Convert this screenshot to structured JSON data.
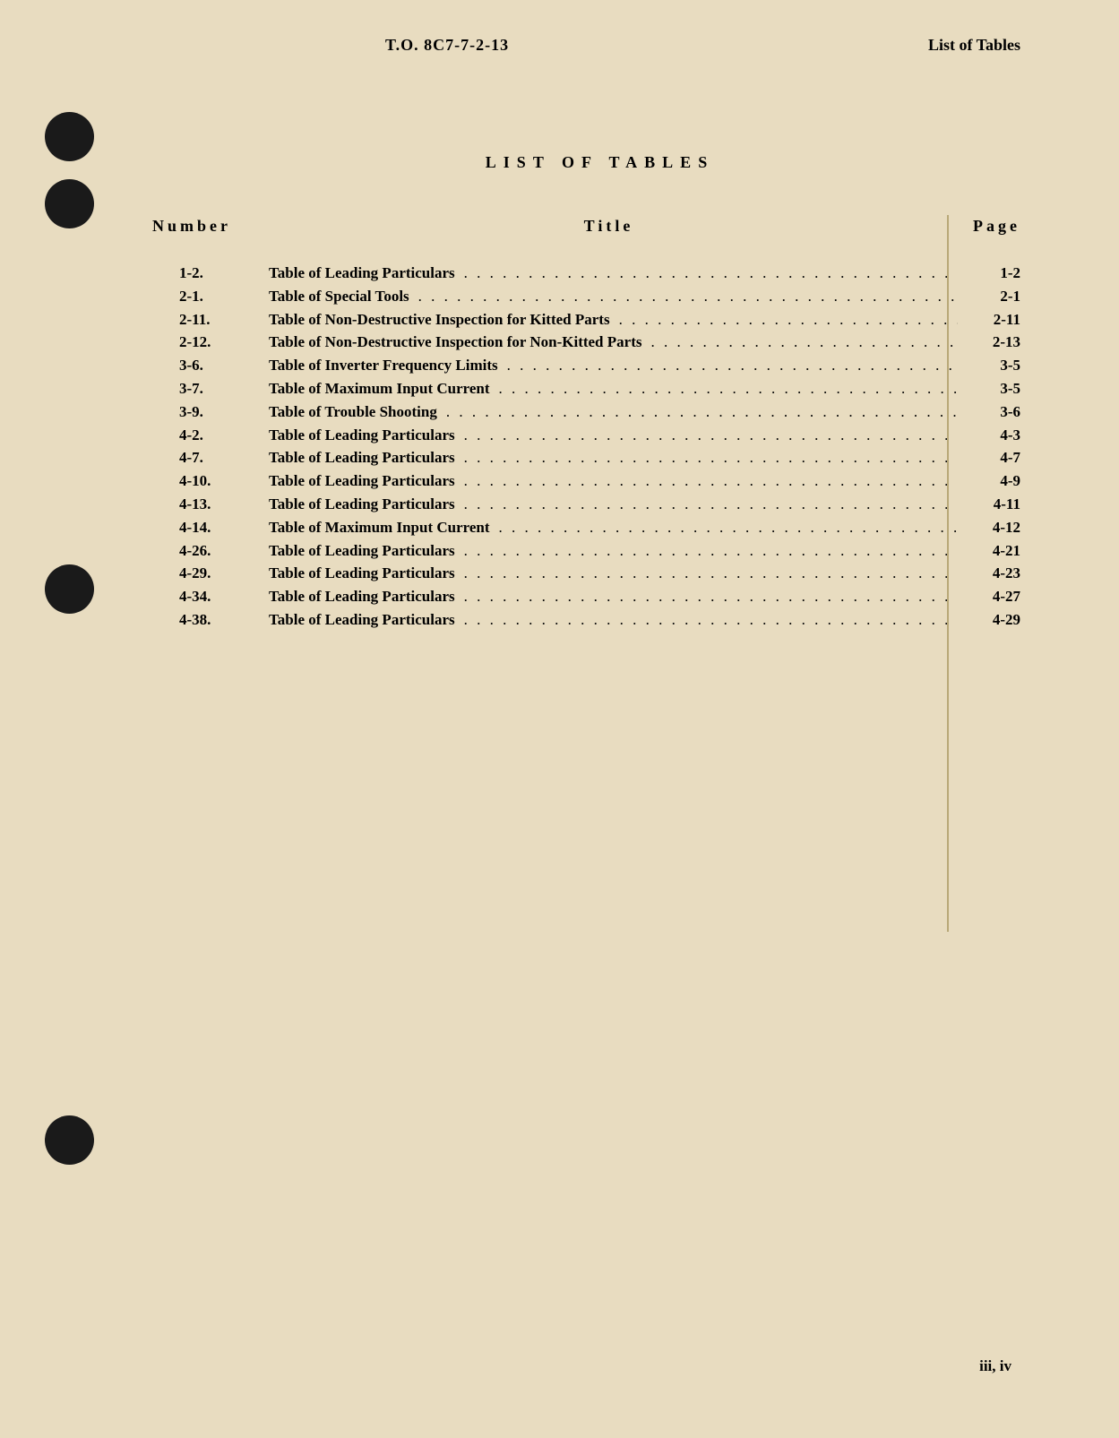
{
  "header": {
    "docNumber": "T.O. 8C7-7-2-13",
    "label": "List of Tables"
  },
  "title": "LIST OF TABLES",
  "columnHeaders": {
    "number": "Number",
    "title": "Title",
    "page": "Page"
  },
  "entries": [
    {
      "number": "1-2.",
      "title": "Table of Leading Particulars",
      "page": "1-2"
    },
    {
      "number": "2-1.",
      "title": "Table of Special Tools",
      "page": "2-1"
    },
    {
      "number": "2-11.",
      "title": "Table of Non-Destructive Inspection for Kitted Parts",
      "page": "2-11"
    },
    {
      "number": "2-12.",
      "title": "Table of Non-Destructive Inspection for Non-Kitted Parts",
      "page": "2-13"
    },
    {
      "number": "3-6.",
      "title": "Table of Inverter Frequency Limits",
      "page": "3-5"
    },
    {
      "number": "3-7.",
      "title": "Table of Maximum Input Current",
      "page": "3-5"
    },
    {
      "number": "3-9.",
      "title": "Table of Trouble Shooting",
      "page": "3-6"
    },
    {
      "number": "4-2.",
      "title": "Table of Leading Particulars",
      "page": "4-3"
    },
    {
      "number": "4-7.",
      "title": "Table of Leading Particulars",
      "page": "4-7"
    },
    {
      "number": "4-10.",
      "title": "Table of Leading Particulars",
      "page": "4-9"
    },
    {
      "number": "4-13.",
      "title": "Table of Leading Particulars",
      "page": "4-11"
    },
    {
      "number": "4-14.",
      "title": "Table of Maximum Input Current",
      "page": "4-12"
    },
    {
      "number": "4-26.",
      "title": "Table of Leading Particulars",
      "page": "4-21"
    },
    {
      "number": "4-29.",
      "title": "Table of Leading Particulars",
      "page": "4-23"
    },
    {
      "number": "4-34.",
      "title": "Table of Leading Particulars",
      "page": "4-27"
    },
    {
      "number": "4-38.",
      "title": "Table of Leading Particulars",
      "page": "4-29"
    }
  ],
  "pageNumber": "iii, iv",
  "styling": {
    "backgroundColor": "#e8dcc0",
    "textColor": "#000000",
    "fontFamily": "Times New Roman",
    "titleFontSize": 18,
    "titleLetterSpacing": 8,
    "bodyFontSize": 17,
    "headerLetterSpacing": 4,
    "punchHoleColor": "#1a1a1a",
    "punchHoleSize": 55,
    "verticalLineColor": "#b8a878"
  }
}
